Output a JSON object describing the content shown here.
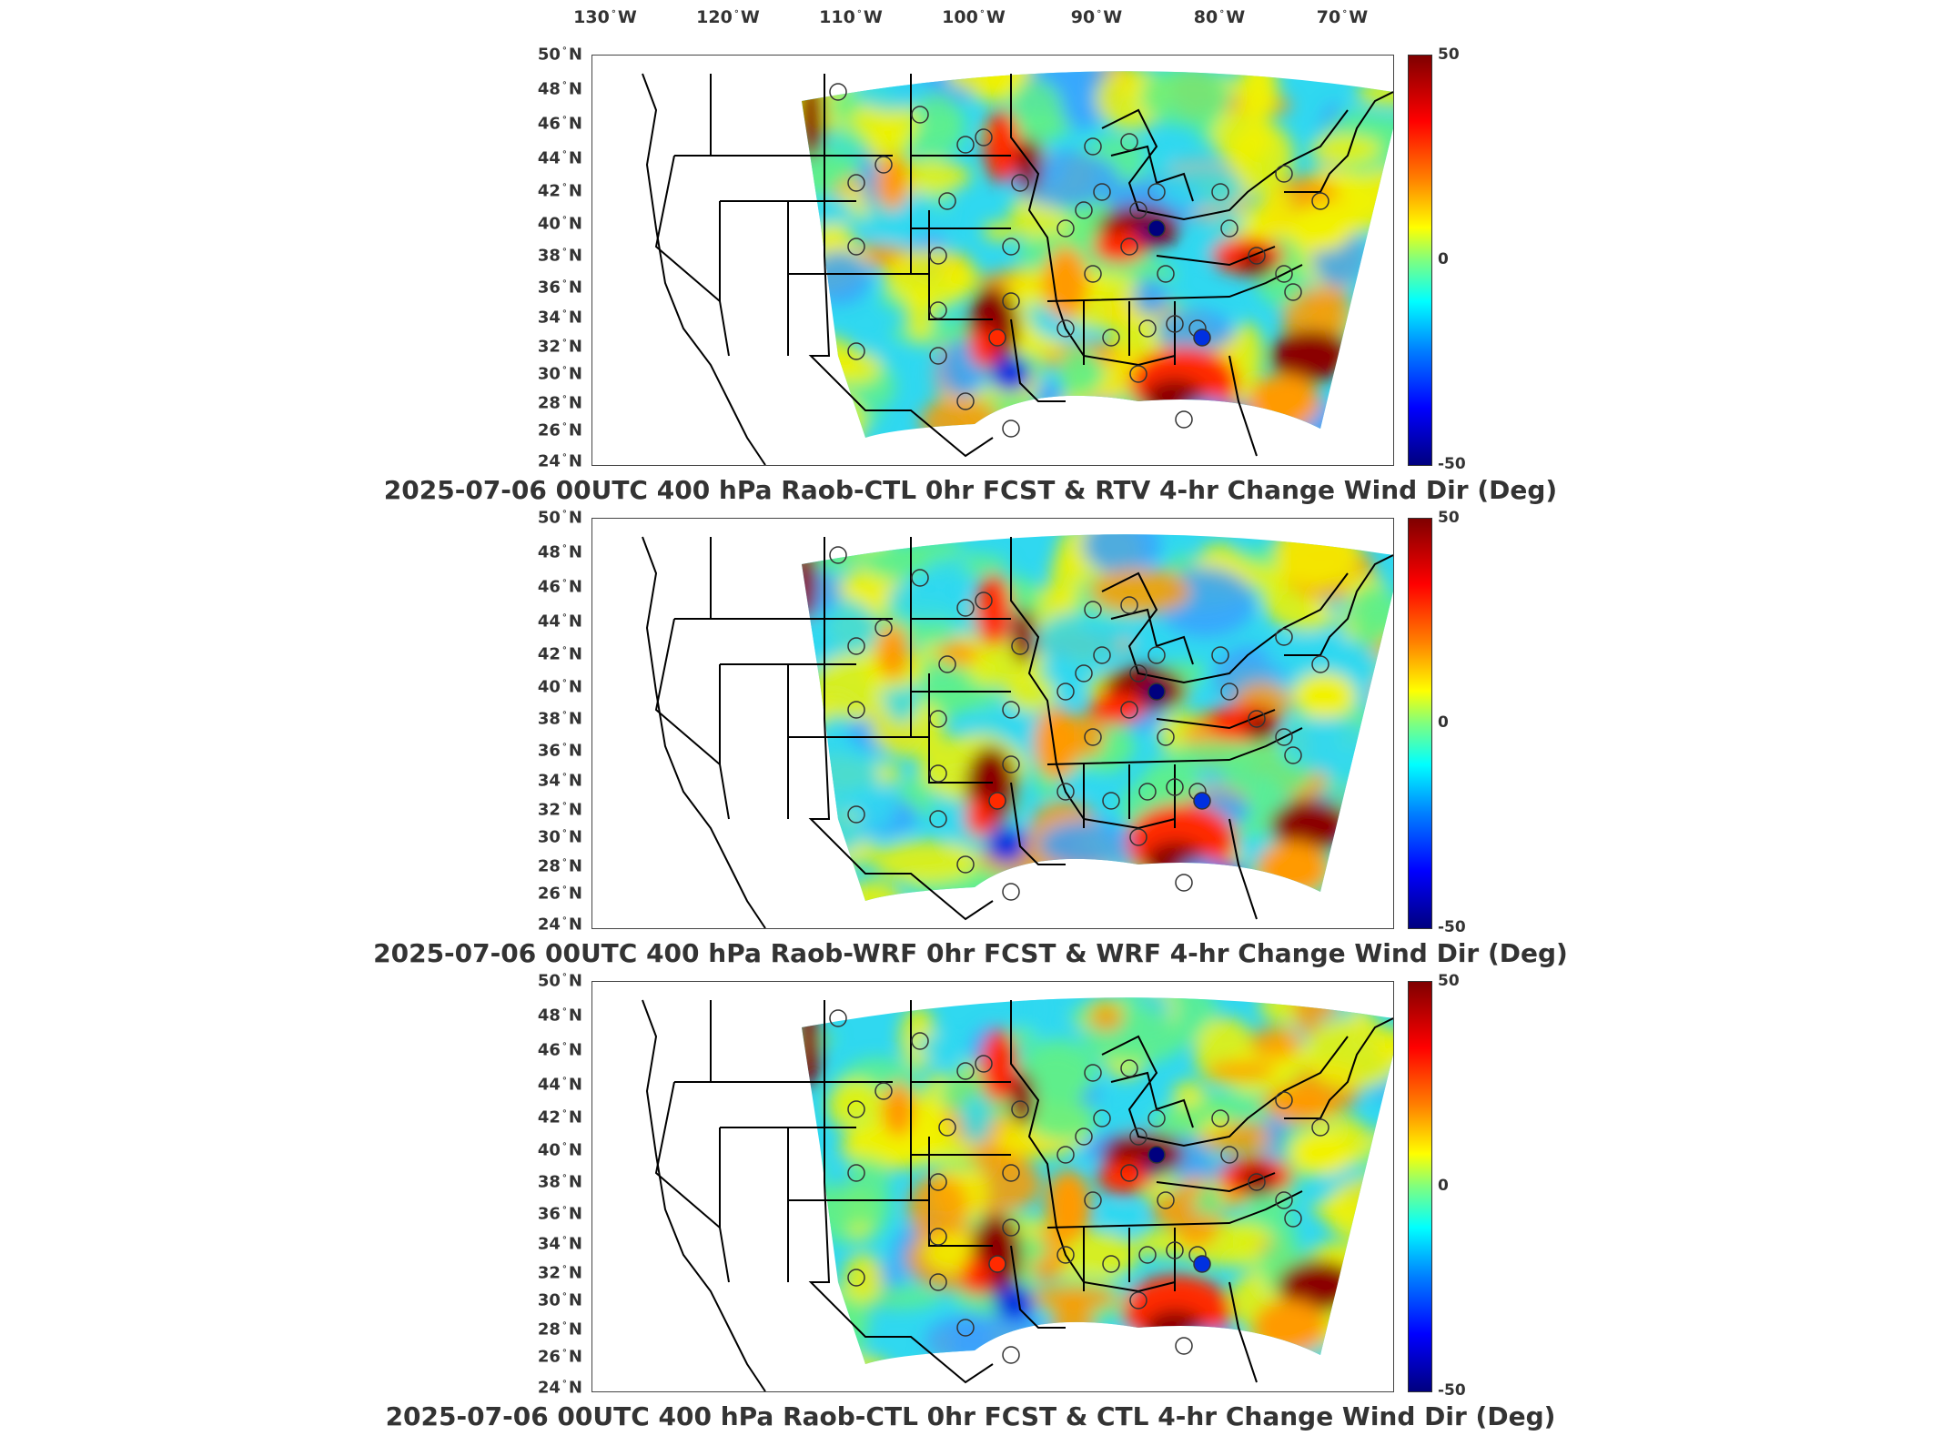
{
  "longitude_labels": [
    {
      "deg": "130",
      "hemi": "W"
    },
    {
      "deg": "120",
      "hemi": "W"
    },
    {
      "deg": "110",
      "hemi": "W"
    },
    {
      "deg": "100",
      "hemi": "W"
    },
    {
      "deg": "90",
      "hemi": "W"
    },
    {
      "deg": "80",
      "hemi": "W"
    },
    {
      "deg": "70",
      "hemi": "W"
    }
  ],
  "latitude_labels": [
    "50",
    "48",
    "46",
    "44",
    "42",
    "40",
    "38",
    "36",
    "34",
    "32",
    "30",
    "28",
    "26",
    "24"
  ],
  "latitude_hemi": "N",
  "colorbar": {
    "max": "50",
    "mid": "0",
    "min": "-50"
  },
  "panels": [
    {
      "title": "2025-07-06 00UTC 400 hPa Raob-CTL 0hr FCST & RTV 4-hr Change Wind Dir (Deg)"
    },
    {
      "title": "2025-07-06 00UTC 400 hPa Raob-WRF 0hr FCST & WRF 4-hr Change Wind Dir (Deg)"
    },
    {
      "title": "2025-07-06 00UTC 400 hPa Raob-CTL 0hr FCST & CTL 4-hr Change Wind Dir (Deg)"
    }
  ],
  "colors": {
    "dark_red": "#8b0000",
    "red": "#ff2a00",
    "orange": "#ff9a00",
    "yellow": "#f2f200",
    "green": "#5ff08a",
    "cyan": "#30d8f0",
    "light_blue": "#38a0ff",
    "blue": "#0030e0",
    "dark_blue": "#00007f"
  }
}
